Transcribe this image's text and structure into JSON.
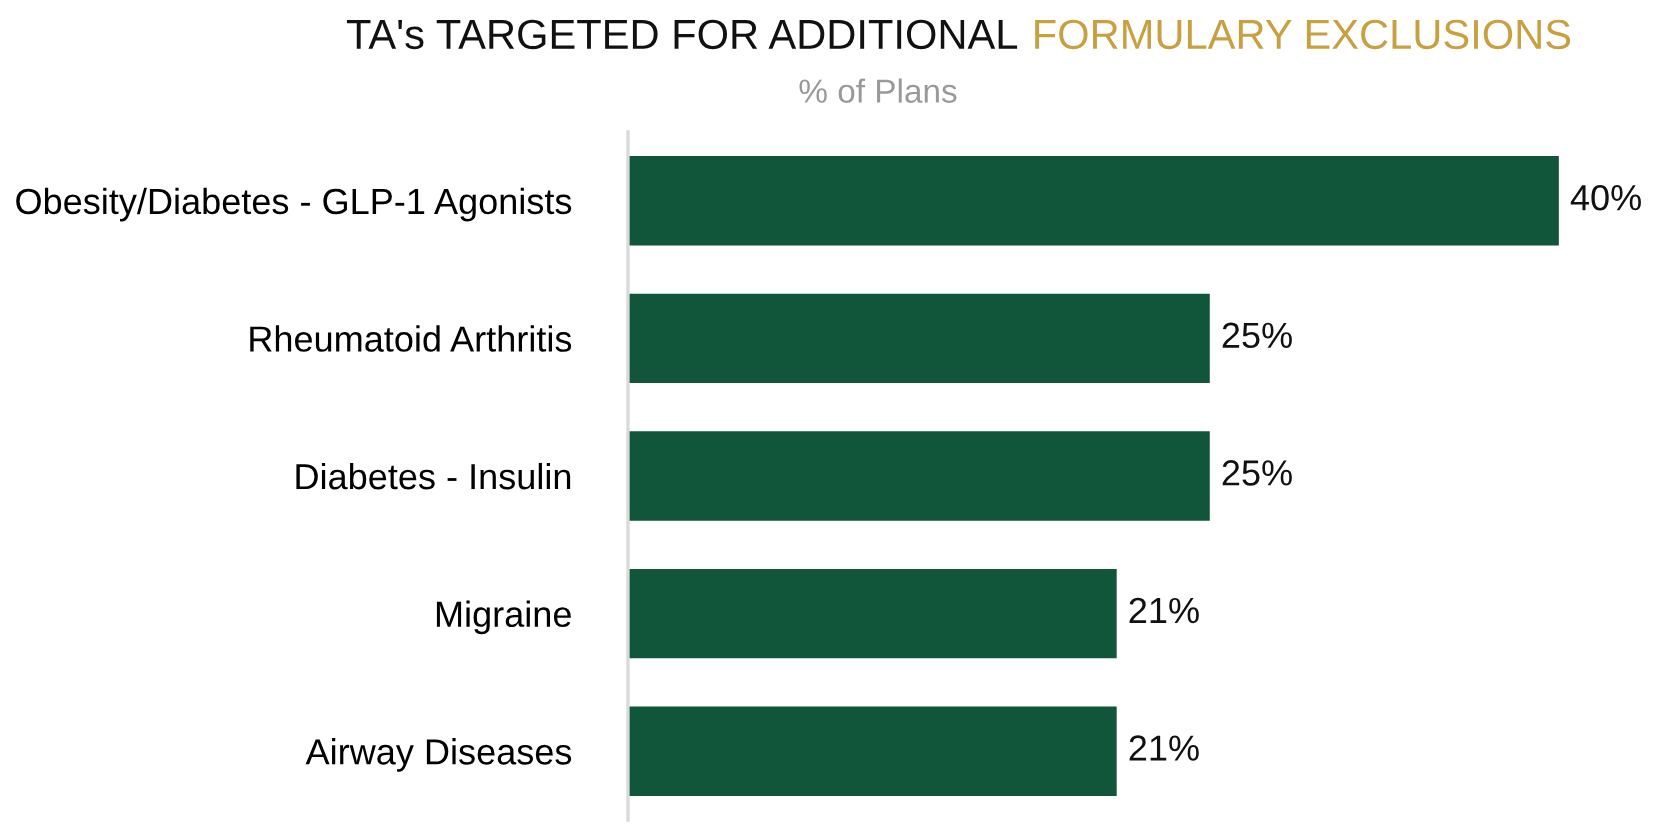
{
  "chart_data": {
    "type": "bar",
    "orientation": "horizontal",
    "title": "TA's TARGETED FOR ADDITIONAL",
    "subtitle": "% of Plans",
    "annotations": [
      "FORMULARY EXCLUSIONS"
    ],
    "categories": [
      "Obesity/Diabetes - GLP-1 Agonists",
      "Rheumatoid Arthritis",
      "Diabetes - Insulin",
      "Migraine",
      "Airway Diseases"
    ],
    "values": [
      40,
      25,
      25,
      21,
      21
    ],
    "value_labels": [
      "40%",
      "25%",
      "25%",
      "21%",
      "21%"
    ],
    "color": "#11553a",
    "tick_labels": "y",
    "grid": false,
    "legend": false
  }
}
